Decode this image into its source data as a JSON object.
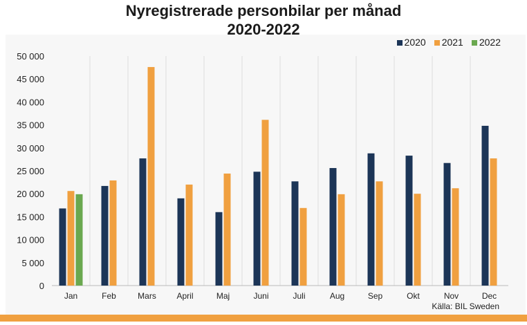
{
  "chart_data": {
    "type": "bar",
    "title": "Nyregistrerade personbilar per månad",
    "subtitle": "2020-2022",
    "categories": [
      "Jan",
      "Feb",
      "Mars",
      "April",
      "Maj",
      "Juni",
      "Juli",
      "Aug",
      "Sep",
      "Okt",
      "Nov",
      "Dec"
    ],
    "series": [
      {
        "name": "2020",
        "color": "#1c3557",
        "values": [
          16800,
          21700,
          27700,
          19000,
          16000,
          24800,
          22700,
          25600,
          28800,
          28300,
          26700,
          34800
        ]
      },
      {
        "name": "2021",
        "color": "#f0a040",
        "values": [
          20600,
          22900,
          47600,
          22000,
          24400,
          36100,
          16900,
          19900,
          22700,
          20000,
          21200,
          27700
        ]
      },
      {
        "name": "2022",
        "color": "#6aa84f",
        "values": [
          19900,
          null,
          null,
          null,
          null,
          null,
          null,
          null,
          null,
          null,
          null,
          null
        ]
      }
    ],
    "yticks": [
      "0",
      "5 000",
      "10 000",
      "15 000",
      "20 000",
      "25 000",
      "30 000",
      "35 000",
      "40 000",
      "45 000",
      "50 000"
    ],
    "ylim": [
      0,
      50000
    ],
    "legend": "top-right",
    "source": "Källa: BIL Sweden"
  }
}
